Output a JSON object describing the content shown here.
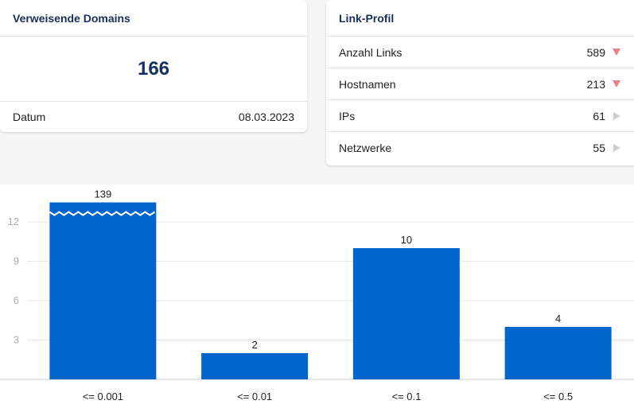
{
  "domains_card": {
    "title": "Verweisende Domains",
    "value": "166",
    "date_label": "Datum",
    "date_value": "08.03.2023"
  },
  "link_profile": {
    "title": "Link-Profil",
    "rows": [
      {
        "label": "Anzahl Links",
        "value": "589",
        "trend": "down",
        "trend_icon": "triangle-down-icon",
        "color": "#e87e8e"
      },
      {
        "label": "Hostnamen",
        "value": "213",
        "trend": "down",
        "trend_icon": "triangle-down-icon",
        "color": "#e87e8e"
      },
      {
        "label": "IPs",
        "value": "61",
        "trend": "neutral",
        "trend_icon": "triangle-right-icon",
        "color": "#d0d0d0"
      },
      {
        "label": "Netzwerke",
        "value": "55",
        "trend": "neutral",
        "trend_icon": "triangle-right-icon",
        "color": "#d0d0d0"
      }
    ]
  },
  "chart_data": {
    "type": "bar",
    "categories": [
      "<= 0.001",
      "<= 0.01",
      "<= 0.1",
      "<= 0.5"
    ],
    "values": [
      139,
      2,
      10,
      4
    ],
    "value_labels": [
      "139",
      "2",
      "10",
      "4"
    ],
    "y_ticks": [
      3,
      6,
      9,
      12
    ],
    "ylim": [
      0,
      14.5
    ],
    "axis_break_on_first_bar": true,
    "bar_color": "#0066cc",
    "grid": true,
    "title": "",
    "xlabel": "",
    "ylabel": ""
  }
}
